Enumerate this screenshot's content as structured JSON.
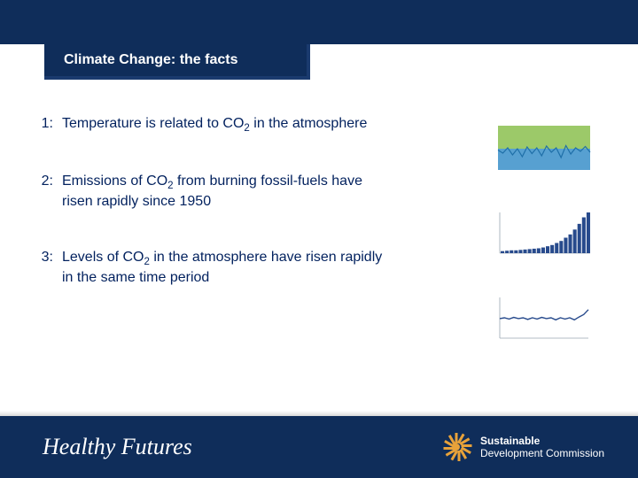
{
  "colors": {
    "navy": "#0f2d5a",
    "text": "#02215e",
    "accent": "#e8a23a",
    "white": "#ffffff"
  },
  "title": "Climate Change: the facts",
  "facts": [
    {
      "num": "1:",
      "text": "Temperature is related to CO<sub>2</sub> in the atmosphere"
    },
    {
      "num": "2:",
      "text": "Emissions of CO<sub>2</sub> from burning fossil-fuels have risen rapidly since 1950"
    },
    {
      "num": "3:",
      "text": "Levels of CO<sub>2</sub> in the atmosphere have risen rapidly in the same time period"
    }
  ],
  "thumbs": [
    {
      "type": "line-band",
      "bg": "#ffffff",
      "band_top_color": "#8bbf4f",
      "band_bottom_color": "#3a8fc9",
      "line_color": "#1f6fa8",
      "y": [
        0.55,
        0.62,
        0.5,
        0.66,
        0.52,
        0.7,
        0.48,
        0.63,
        0.5,
        0.68,
        0.46,
        0.6,
        0.5,
        0.72,
        0.45,
        0.64,
        0.5,
        0.58,
        0.47,
        0.6
      ]
    },
    {
      "type": "bar",
      "bg": "#ffffff",
      "axis_color": "#9aa6b2",
      "bar_color": "#274a8c",
      "values": [
        0.05,
        0.06,
        0.07,
        0.07,
        0.08,
        0.09,
        0.1,
        0.11,
        0.12,
        0.14,
        0.17,
        0.2,
        0.25,
        0.3,
        0.38,
        0.46,
        0.58,
        0.72,
        0.88,
        1.0
      ]
    },
    {
      "type": "line",
      "bg": "#ffffff",
      "axis_color": "#9aa6b2",
      "line_color": "#274a8c",
      "y": [
        0.52,
        0.5,
        0.53,
        0.49,
        0.52,
        0.5,
        0.54,
        0.5,
        0.53,
        0.49,
        0.52,
        0.5,
        0.55,
        0.5,
        0.53,
        0.5,
        0.55,
        0.48,
        0.42,
        0.3
      ]
    }
  ],
  "footer": {
    "left_logo": "Healthy Futures",
    "right_logo_line1": "Sustainable",
    "right_logo_line2": "Development Commission"
  }
}
